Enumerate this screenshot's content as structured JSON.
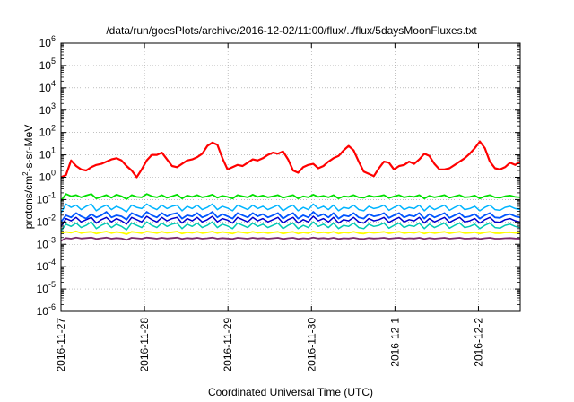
{
  "chart_data": {
    "type": "line",
    "title": "/data/run/goesPlots/archive/2016-12-02/11:00/flux/../flux/5daysMoonFluxes.txt",
    "xlabel": "Coordinated Universal Time (UTC)",
    "ylabel": {
      "base": "protons/cm",
      "sup": "2",
      "rest": "-s-sr-MeV"
    },
    "yscale": "log",
    "ylim_exp": [
      -6,
      6
    ],
    "y_ticks": [
      {
        "base": "10",
        "exp": "-6"
      },
      {
        "base": "10",
        "exp": "-5"
      },
      {
        "base": "10",
        "exp": "-4"
      },
      {
        "base": "10",
        "exp": "-3"
      },
      {
        "base": "10",
        "exp": "-2"
      },
      {
        "base": "10",
        "exp": "-1"
      },
      {
        "base": "10",
        "exp": "0"
      },
      {
        "base": "10",
        "exp": "1"
      },
      {
        "base": "10",
        "exp": "2"
      },
      {
        "base": "10",
        "exp": "3"
      },
      {
        "base": "10",
        "exp": "4"
      },
      {
        "base": "10",
        "exp": "5"
      },
      {
        "base": "10",
        "exp": "6"
      }
    ],
    "x_tick_labels": [
      "2016-11-27",
      "2016-11-28",
      "2016-11-29",
      "2016-11-30",
      "2016-12-1",
      "2016-12-2"
    ],
    "xlim_days": [
      0,
      5.5
    ],
    "grid": true,
    "series": [
      {
        "color": "#ff0000",
        "width": 2.2,
        "log_values": [
          0.0,
          0.1,
          0.75,
          0.5,
          0.35,
          0.3,
          0.45,
          0.55,
          0.6,
          0.7,
          0.8,
          0.85,
          0.75,
          0.5,
          0.3,
          0.0,
          0.35,
          0.75,
          1.0,
          1.0,
          1.1,
          0.8,
          0.5,
          0.45,
          0.6,
          0.75,
          0.8,
          0.9,
          1.05,
          1.4,
          1.55,
          1.45,
          0.85,
          0.35,
          0.45,
          0.55,
          0.5,
          0.65,
          0.8,
          0.75,
          0.85,
          1.0,
          1.1,
          1.05,
          1.15,
          0.8,
          0.3,
          0.2,
          0.45,
          0.55,
          0.6,
          0.4,
          0.5,
          0.7,
          0.85,
          0.95,
          1.2,
          1.4,
          1.2,
          0.7,
          0.25,
          0.15,
          0.05,
          0.4,
          0.7,
          0.65,
          0.35,
          0.5,
          0.55,
          0.7,
          0.6,
          0.8,
          1.05,
          0.95,
          0.6,
          0.35,
          0.35,
          0.4,
          0.55,
          0.7,
          0.85,
          1.05,
          1.3,
          1.6,
          1.3,
          0.7,
          0.4,
          0.35,
          0.45,
          0.65,
          0.55,
          0.7
        ]
      },
      {
        "color": "#00e000",
        "width": 1.8,
        "log_values": [
          -1.05,
          -0.75,
          -0.85,
          -0.8,
          -0.9,
          -0.82,
          -0.75,
          -0.95,
          -0.88,
          -0.8,
          -0.92,
          -0.78,
          -0.85,
          -0.98,
          -0.8,
          -0.88,
          -0.9,
          -0.75,
          -0.85,
          -0.9,
          -0.8,
          -0.92,
          -0.85,
          -0.78,
          -0.95,
          -0.82,
          -0.88,
          -0.8,
          -0.9,
          -0.85,
          -0.78,
          -0.92,
          -0.83,
          -0.88,
          -0.95,
          -0.8,
          -0.85,
          -0.9,
          -0.78,
          -0.88,
          -0.82,
          -0.9,
          -0.85,
          -0.8,
          -0.92,
          -0.86,
          -0.8,
          -0.95,
          -0.85,
          -0.9,
          -0.78,
          -0.88,
          -0.83,
          -0.9,
          -0.8,
          -0.95,
          -0.85,
          -0.88,
          -0.8,
          -0.9,
          -0.92,
          -0.82,
          -0.88,
          -0.85,
          -0.8,
          -0.93,
          -0.86,
          -0.8,
          -0.9,
          -0.85,
          -0.88,
          -0.8,
          -0.95,
          -0.83,
          -0.9,
          -0.85,
          -0.8,
          -0.92,
          -0.86,
          -0.8,
          -0.9,
          -0.88,
          -0.82,
          -0.95,
          -0.85,
          -0.8,
          -0.9,
          -0.92,
          -0.85,
          -0.82,
          -0.88,
          -0.9
        ]
      },
      {
        "color": "#00b4ff",
        "width": 1.5,
        "log_values": [
          -1.6,
          -1.2,
          -1.35,
          -1.25,
          -1.45,
          -1.3,
          -1.2,
          -1.5,
          -1.35,
          -1.25,
          -1.45,
          -1.3,
          -1.4,
          -1.55,
          -1.25,
          -1.35,
          -1.4,
          -1.2,
          -1.35,
          -1.45,
          -1.25,
          -1.4,
          -1.3,
          -1.25,
          -1.5,
          -1.3,
          -1.4,
          -1.25,
          -1.45,
          -1.35,
          -1.2,
          -1.45,
          -1.3,
          -1.38,
          -1.5,
          -1.25,
          -1.35,
          -1.45,
          -1.25,
          -1.4,
          -1.3,
          -1.45,
          -1.35,
          -1.25,
          -1.5,
          -1.35,
          -1.25,
          -1.5,
          -1.35,
          -1.45,
          -1.2,
          -1.4,
          -1.3,
          -1.45,
          -1.25,
          -1.5,
          -1.35,
          -1.4,
          -1.25,
          -1.45,
          -1.5,
          -1.3,
          -1.4,
          -1.35,
          -1.25,
          -1.48,
          -1.35,
          -1.25,
          -1.45,
          -1.35,
          -1.4,
          -1.25,
          -1.5,
          -1.3,
          -1.45,
          -1.35,
          -1.25,
          -1.48,
          -1.35,
          -1.25,
          -1.45,
          -1.4,
          -1.3,
          -1.5,
          -1.35,
          -1.25,
          -1.45,
          -1.48,
          -1.35,
          -1.3,
          -1.4,
          -1.45
        ]
      },
      {
        "color": "#0055ff",
        "width": 1.8,
        "log_values": [
          -2.0,
          -1.7,
          -1.8,
          -1.6,
          -1.75,
          -1.85,
          -1.65,
          -1.8,
          -1.7,
          -1.55,
          -1.8,
          -1.7,
          -1.75,
          -1.9,
          -1.6,
          -1.7,
          -1.8,
          -1.55,
          -1.7,
          -1.8,
          -1.6,
          -1.75,
          -1.65,
          -1.6,
          -1.85,
          -1.7,
          -1.75,
          -1.6,
          -1.8,
          -1.7,
          -1.55,
          -1.8,
          -1.65,
          -1.75,
          -1.85,
          -1.6,
          -1.7,
          -1.8,
          -1.6,
          -1.75,
          -1.65,
          -1.8,
          -1.7,
          -1.6,
          -1.85,
          -1.7,
          -1.6,
          -1.85,
          -1.7,
          -1.8,
          -1.55,
          -1.75,
          -1.65,
          -1.8,
          -1.6,
          -1.85,
          -1.7,
          -1.75,
          -1.6,
          -1.8,
          -1.85,
          -1.65,
          -1.75,
          -1.7,
          -1.6,
          -1.82,
          -1.7,
          -1.6,
          -1.8,
          -1.7,
          -1.75,
          -1.6,
          -1.85,
          -1.65,
          -1.8,
          -1.7,
          -1.6,
          -1.82,
          -1.7,
          -1.6,
          -1.8,
          -1.75,
          -1.65,
          -1.85,
          -1.7,
          -1.6,
          -1.8,
          -1.82,
          -1.7,
          -1.65,
          -1.75,
          -1.8
        ]
      },
      {
        "color": "#00c8b4",
        "width": 1.5,
        "log_values": [
          -2.4,
          -2.1,
          -2.2,
          -2.05,
          -2.25,
          -2.15,
          -2.0,
          -2.3,
          -2.15,
          -2.05,
          -2.25,
          -2.1,
          -2.2,
          -2.35,
          -2.05,
          -2.15,
          -2.25,
          -2.0,
          -2.15,
          -2.25,
          -2.05,
          -2.2,
          -2.1,
          -2.05,
          -2.3,
          -2.1,
          -2.2,
          -2.05,
          -2.25,
          -2.15,
          -2.0,
          -2.25,
          -2.1,
          -2.18,
          -2.3,
          -2.05,
          -2.15,
          -2.25,
          -2.05,
          -2.2,
          -2.1,
          -2.25,
          -2.15,
          -2.05,
          -2.3,
          -2.15,
          -2.05,
          -2.3,
          -2.15,
          -2.25,
          -2.0,
          -2.2,
          -2.1,
          -2.25,
          -2.05,
          -2.3,
          -2.15,
          -2.2,
          -2.05,
          -2.25,
          -2.3,
          -2.1,
          -2.2,
          -2.15,
          -2.05,
          -2.28,
          -2.15,
          -2.05,
          -2.25,
          -2.15,
          -2.2,
          -2.05,
          -2.3,
          -2.1,
          -2.25,
          -2.15,
          -2.05,
          -2.28,
          -2.15,
          -2.05,
          -2.25,
          -2.2,
          -2.1,
          -2.3,
          -2.15,
          -2.05,
          -2.25,
          -2.28,
          -2.15,
          -2.1,
          -2.2,
          -2.25
        ]
      },
      {
        "color": "#0000cc",
        "width": 1.5,
        "log_values": [
          -2.2,
          -1.85,
          -1.95,
          -1.8,
          -2.0,
          -1.9,
          -1.8,
          -2.05,
          -1.9,
          -1.8,
          -2.0,
          -1.85,
          -1.95,
          -2.1,
          -1.8,
          -1.9,
          -2.0,
          -1.75,
          -1.9,
          -2.0,
          -1.8,
          -1.95,
          -1.85,
          -1.8,
          -2.05,
          -1.85,
          -1.95,
          -1.8,
          -2.0,
          -1.9,
          -1.75,
          -2.0,
          -1.85,
          -1.92,
          -2.05,
          -1.8,
          -1.9,
          -2.0,
          -1.8,
          -1.95,
          -1.85,
          -2.0,
          -1.9,
          -1.8,
          -2.05,
          -1.9,
          -1.8,
          -2.05,
          -1.9,
          -2.0,
          -1.75,
          -1.95,
          -1.85,
          -2.0,
          -1.8,
          -2.05,
          -1.9,
          -1.95,
          -1.8,
          -2.0,
          -2.05,
          -1.85,
          -1.95,
          -1.9,
          -1.8,
          -2.02,
          -1.9,
          -1.8,
          -2.0,
          -1.9,
          -1.95,
          -1.8,
          -2.05,
          -1.85,
          -2.0,
          -1.9,
          -1.8,
          -2.02,
          -1.9,
          -1.8,
          -2.0,
          -1.95,
          -1.85,
          -2.05,
          -1.9,
          -1.8,
          -2.0,
          -2.02,
          -1.9,
          -1.85,
          -1.95,
          -2.0
        ]
      },
      {
        "color": "#ffff00",
        "width": 1.8,
        "log_values": [
          -2.5,
          -2.45,
          -2.48,
          -2.42,
          -2.5,
          -2.46,
          -2.44,
          -2.52,
          -2.47,
          -2.43,
          -2.5,
          -2.45,
          -2.48,
          -2.55,
          -2.44,
          -2.47,
          -2.5,
          -2.43,
          -2.46,
          -2.5,
          -2.44,
          -2.49,
          -2.46,
          -2.43,
          -2.52,
          -2.46,
          -2.49,
          -2.44,
          -2.5,
          -2.47,
          -2.43,
          -2.5,
          -2.45,
          -2.48,
          -2.52,
          -2.44,
          -2.47,
          -2.5,
          -2.44,
          -2.49,
          -2.46,
          -2.5,
          -2.47,
          -2.44,
          -2.52,
          -2.47,
          -2.44,
          -2.52,
          -2.47,
          -2.5,
          -2.43,
          -2.49,
          -2.46,
          -2.5,
          -2.44,
          -2.52,
          -2.47,
          -2.49,
          -2.44,
          -2.5,
          -2.52,
          -2.46,
          -2.49,
          -2.47,
          -2.44,
          -2.51,
          -2.47,
          -2.44,
          -2.5,
          -2.47,
          -2.49,
          -2.44,
          -2.52,
          -2.46,
          -2.5,
          -2.47,
          -2.44,
          -2.51,
          -2.47,
          -2.44,
          -2.5,
          -2.49,
          -2.46,
          -2.52,
          -2.47,
          -2.44,
          -2.5,
          -2.51,
          -2.47,
          -2.46,
          -2.49,
          -2.5
        ]
      },
      {
        "color": "#7b2a6b",
        "width": 1.8,
        "log_values": [
          -2.85,
          -2.72,
          -2.75,
          -2.7,
          -2.74,
          -2.72,
          -2.7,
          -2.76,
          -2.73,
          -2.7,
          -2.75,
          -2.72,
          -2.74,
          -2.8,
          -2.71,
          -2.73,
          -2.75,
          -2.7,
          -2.72,
          -2.75,
          -2.71,
          -2.74,
          -2.72,
          -2.7,
          -2.76,
          -2.72,
          -2.74,
          -2.71,
          -2.75,
          -2.73,
          -2.7,
          -2.75,
          -2.72,
          -2.74,
          -2.76,
          -2.71,
          -2.73,
          -2.75,
          -2.71,
          -2.74,
          -2.72,
          -2.75,
          -2.73,
          -2.71,
          -2.76,
          -2.73,
          -2.71,
          -2.76,
          -2.73,
          -2.75,
          -2.7,
          -2.74,
          -2.72,
          -2.75,
          -2.71,
          -2.76,
          -2.73,
          -2.74,
          -2.71,
          -2.75,
          -2.76,
          -2.72,
          -2.74,
          -2.73,
          -2.71,
          -2.75,
          -2.73,
          -2.71,
          -2.75,
          -2.73,
          -2.74,
          -2.71,
          -2.76,
          -2.72,
          -2.75,
          -2.73,
          -2.71,
          -2.75,
          -2.73,
          -2.71,
          -2.75,
          -2.74,
          -2.72,
          -2.76,
          -2.73,
          -2.71,
          -2.75,
          -2.75,
          -2.73,
          -2.72,
          -2.74,
          -2.75
        ]
      }
    ]
  }
}
